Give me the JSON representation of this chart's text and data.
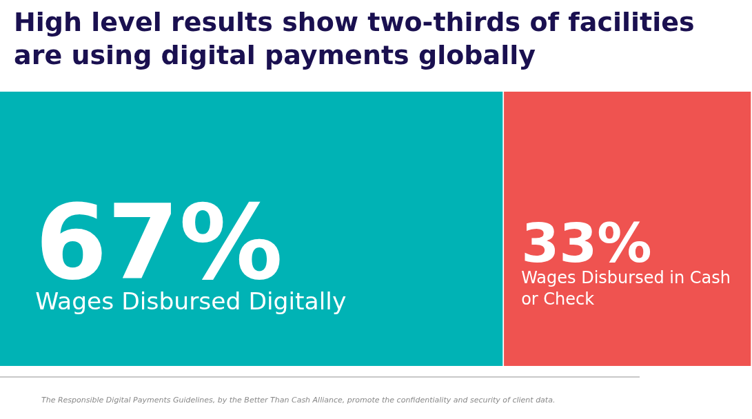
{
  "chart_data": {
    "type": "bar",
    "orientation": "horizontal",
    "stacked": true,
    "title": "High level results show two-thirds of facilities are using digital payments globally",
    "categories": [
      null
    ],
    "xlim": [
      0,
      100
    ],
    "legend": false,
    "series": [
      {
        "name": "Wages Disbursed Digitally",
        "color": "#00b3b5",
        "values": [
          67
        ],
        "value_labels": [
          "67%"
        ]
      },
      {
        "name": "Wages Disbursed in Cash or Check",
        "color": "#ef5350",
        "values": [
          33
        ],
        "value_labels": [
          "33%"
        ]
      }
    ],
    "annotations": [
      "The Responsible Digital Payments Guidelines, by the Better Than Cash Alliance, promote the confidentiality and security of client data."
    ]
  }
}
